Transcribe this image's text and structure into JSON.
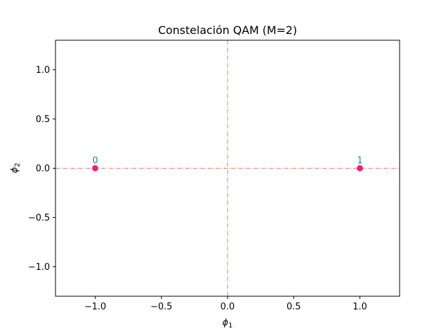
{
  "chart_data": {
    "type": "scatter",
    "title": "Constelación QAM (M=2)",
    "xlabel": {
      "base": "ϕ",
      "sub": "1"
    },
    "ylabel": {
      "base": "ϕ",
      "sub": "2"
    },
    "xlim": [
      -1.3,
      1.3
    ],
    "ylim": [
      -1.3,
      1.3
    ],
    "xticks": [
      -1.0,
      -0.5,
      0.0,
      0.5,
      1.0
    ],
    "yticks": [
      -1.0,
      -0.5,
      0.0,
      0.5,
      1.0
    ],
    "xtick_labels": [
      "−1.0",
      "−0.5",
      "0.0",
      "0.5",
      "1.0"
    ],
    "ytick_labels": [
      "−1.0",
      "−0.5",
      "0.0",
      "0.5",
      "1.0"
    ],
    "grid": false,
    "reference_lines": {
      "x": 0,
      "y": 0,
      "color": "#e07b6c",
      "style": "dash-dot"
    },
    "points": [
      {
        "x": -1.0,
        "y": 0.0,
        "label": "0"
      },
      {
        "x": 1.0,
        "y": 0.0,
        "label": "1"
      }
    ],
    "point_color": "#f0207a",
    "label_color": "#0f8b8d"
  }
}
